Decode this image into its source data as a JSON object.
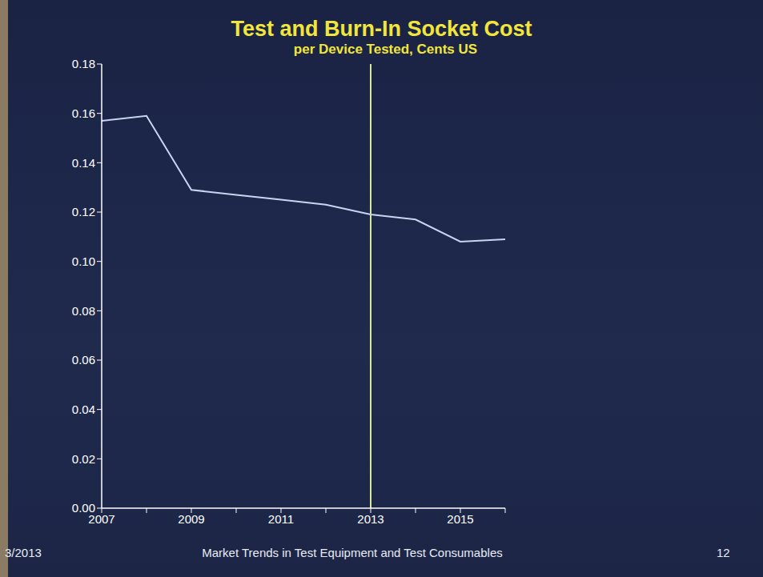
{
  "chart_data": {
    "type": "line",
    "title": "Test and Burn-In Socket Cost",
    "subtitle": "per Device Tested, Cents US",
    "categories": [
      "2007",
      null,
      "2009",
      null,
      "2011",
      null,
      "2013",
      null,
      "2015",
      null
    ],
    "values": [
      0.157,
      0.159,
      0.129,
      0.127,
      0.125,
      0.123,
      0.119,
      0.117,
      0.108,
      0.109
    ],
    "color": "#c8d4f0",
    "ylim": [
      0,
      0.18
    ],
    "yticks": [
      {
        "value": 0,
        "label": "0.00"
      },
      0.02,
      0.04,
      0.06,
      0.08,
      {
        "value": 0.1,
        "label": "0.10"
      },
      0.12,
      0.14,
      0.16,
      0.18
    ],
    "grid": false,
    "vline": "2013",
    "footer": [
      "3/2013",
      "Market Trends in Test Equipment and Test Consumables",
      "12"
    ]
  }
}
